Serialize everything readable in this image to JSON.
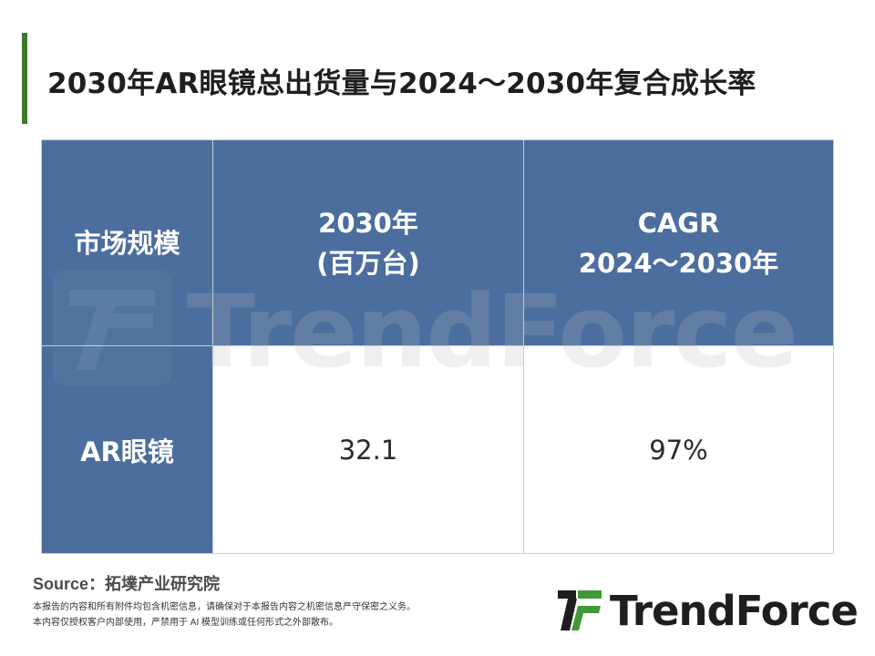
{
  "title": "2030年AR眼镜总出货量与2024～2030年复合成长率",
  "table": {
    "header": {
      "col1": "市场规模",
      "col2_line1": "2030年",
      "col2_line2": "(百万台)",
      "col3_line1": "CAGR",
      "col3_line2": "2024～2030年"
    },
    "rows": [
      {
        "label": "AR眼镜",
        "shipments": "32.1",
        "cagr": "97%"
      }
    ]
  },
  "watermark": "TrendForce",
  "source": "Source：拓墣产业研究院",
  "disclaimer": [
    "本报告的内容和所有附件均包含机密信息，请确保对于本报告内容之机密信息严守保密之义务。",
    "本内容仅授权客户内部使用，严禁用于 AI 模型训练或任何形式之外部散布。"
  ],
  "logo": {
    "text": "TrendForce",
    "color_green": "#3f9a35",
    "color_dark": "#1e1e1e"
  },
  "colors": {
    "header_bg": "#4b6e9e",
    "accent_bar": "#3f7a2c"
  }
}
